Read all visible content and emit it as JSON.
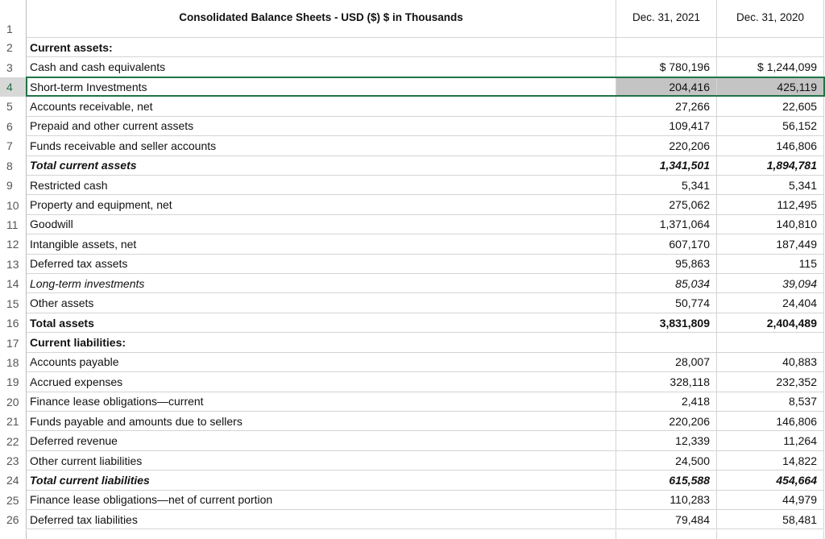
{
  "header": {
    "row_number": "1",
    "title": "Consolidated Balance Sheets - USD ($) $ in Thousands",
    "columns": [
      "Dec. 31, 2021",
      "Dec. 31, 2020"
    ]
  },
  "rows": [
    {
      "number": "2",
      "label": "Current assets:",
      "values": [
        "",
        ""
      ],
      "style": "bold"
    },
    {
      "number": "3",
      "label": "Cash and cash equivalents",
      "values": [
        "$ 780,196",
        "$ 1,244,099"
      ],
      "style": "normal"
    },
    {
      "number": "4",
      "label": "Short-term Investments",
      "values": [
        "204,416",
        "425,119"
      ],
      "style": "normal",
      "selected": true
    },
    {
      "number": "5",
      "label": "Accounts receivable, net",
      "values": [
        "27,266",
        "22,605"
      ],
      "style": "normal"
    },
    {
      "number": "6",
      "label": "Prepaid and other current assets",
      "values": [
        "109,417",
        "56,152"
      ],
      "style": "normal"
    },
    {
      "number": "7",
      "label": "Funds receivable and seller accounts",
      "values": [
        "220,206",
        "146,806"
      ],
      "style": "normal"
    },
    {
      "number": "8",
      "label": "Total current assets",
      "values": [
        "1,341,501",
        "1,894,781"
      ],
      "style": "bold-italic"
    },
    {
      "number": "9",
      "label": "Restricted cash",
      "values": [
        "5,341",
        "5,341"
      ],
      "style": "normal"
    },
    {
      "number": "10",
      "label": "Property and equipment, net",
      "values": [
        "275,062",
        "112,495"
      ],
      "style": "normal"
    },
    {
      "number": "11",
      "label": "Goodwill",
      "values": [
        "1,371,064",
        "140,810"
      ],
      "style": "normal"
    },
    {
      "number": "12",
      "label": "Intangible assets, net",
      "values": [
        "607,170",
        "187,449"
      ],
      "style": "normal"
    },
    {
      "number": "13",
      "label": "Deferred tax assets",
      "values": [
        "95,863",
        "115"
      ],
      "style": "normal"
    },
    {
      "number": "14",
      "label": "Long-term investments",
      "values": [
        "85,034",
        "39,094"
      ],
      "style": "italic"
    },
    {
      "number": "15",
      "label": "Other assets",
      "values": [
        "50,774",
        "24,404"
      ],
      "style": "normal"
    },
    {
      "number": "16",
      "label": "Total assets",
      "values": [
        "3,831,809",
        "2,404,489"
      ],
      "style": "bold"
    },
    {
      "number": "17",
      "label": "Current liabilities:",
      "values": [
        "",
        ""
      ],
      "style": "bold"
    },
    {
      "number": "18",
      "label": "Accounts payable",
      "values": [
        "28,007",
        "40,883"
      ],
      "style": "normal"
    },
    {
      "number": "19",
      "label": "Accrued expenses",
      "values": [
        "328,118",
        "232,352"
      ],
      "style": "normal"
    },
    {
      "number": "20",
      "label": "Finance lease obligations—current",
      "values": [
        "2,418",
        "8,537"
      ],
      "style": "normal"
    },
    {
      "number": "21",
      "label": "Funds payable and amounts due to sellers",
      "values": [
        "220,206",
        "146,806"
      ],
      "style": "normal"
    },
    {
      "number": "22",
      "label": "Deferred revenue",
      "values": [
        "12,339",
        "11,264"
      ],
      "style": "normal"
    },
    {
      "number": "23",
      "label": "Other current liabilities",
      "values": [
        "24,500",
        "14,822"
      ],
      "style": "normal"
    },
    {
      "number": "24",
      "label": "Total current liabilities",
      "values": [
        "615,588",
        "454,664"
      ],
      "style": "bold-italic"
    },
    {
      "number": "25",
      "label": "Finance lease obligations—net of current portion",
      "values": [
        "110,283",
        "44,979"
      ],
      "style": "normal"
    },
    {
      "number": "26",
      "label": "Deferred tax liabilities",
      "values": [
        "79,484",
        "58,481"
      ],
      "style": "normal"
    }
  ]
}
